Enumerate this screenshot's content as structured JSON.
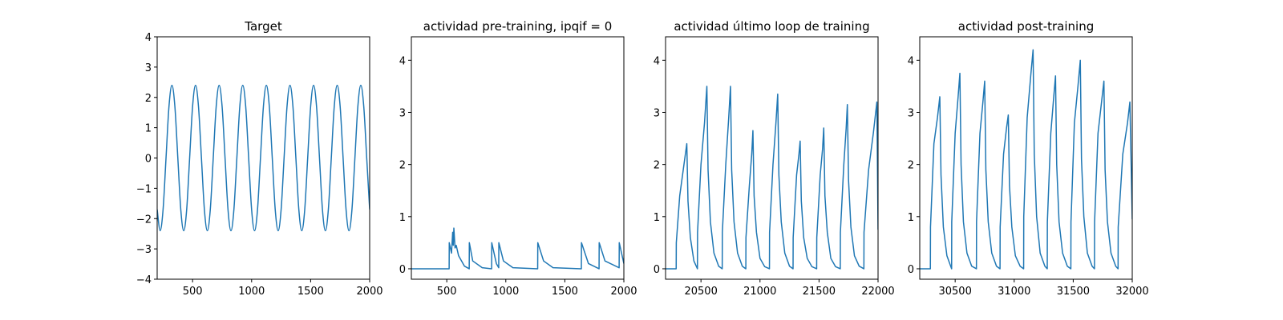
{
  "chart_data": [
    {
      "type": "line",
      "title": "Target",
      "color": "#1f77b4",
      "smooth": true,
      "x": [
        200,
        225,
        250,
        275,
        300,
        325,
        350,
        375,
        400,
        425,
        450,
        475,
        500,
        525,
        550,
        575,
        600,
        625,
        650,
        675,
        700,
        725,
        750,
        775,
        800,
        825,
        850,
        875,
        900,
        925,
        950,
        975,
        1000,
        1025,
        1050,
        1075,
        1100,
        1125,
        1150,
        1175,
        1200,
        1225,
        1250,
        1275,
        1300,
        1325,
        1350,
        1375,
        1400,
        1425,
        1450,
        1475,
        1500,
        1525,
        1550,
        1575,
        1600,
        1625,
        1650,
        1675,
        1700,
        1725,
        1750,
        1775,
        1800,
        1825,
        1850,
        1875,
        1900,
        1925,
        1950,
        1975,
        2000
      ],
      "values": [
        -1.7,
        -2.4,
        -1.7,
        0,
        1.7,
        2.4,
        1.7,
        0,
        -1.7,
        -2.4,
        -1.7,
        0,
        1.7,
        2.4,
        1.7,
        0,
        -1.7,
        -2.4,
        -1.7,
        0,
        1.7,
        2.4,
        1.7,
        0,
        -1.7,
        -2.4,
        -1.7,
        0,
        1.7,
        2.4,
        1.7,
        0,
        -1.7,
        -2.4,
        -1.7,
        0,
        1.7,
        2.4,
        1.7,
        0,
        -1.7,
        -2.4,
        -1.7,
        0,
        1.7,
        2.4,
        1.7,
        0,
        -1.7,
        -2.4,
        -1.7,
        0,
        1.7,
        2.4,
        1.7,
        0,
        -1.7,
        -2.4,
        -1.7,
        0,
        1.7,
        2.4,
        1.7,
        0,
        -1.7,
        -2.4,
        -1.7,
        0,
        1.7,
        2.4,
        1.7,
        0,
        -1.7
      ],
      "xlim": [
        200,
        2000
      ],
      "xticks": [
        500,
        1000,
        1500,
        2000
      ],
      "ylim": [
        -4,
        4
      ],
      "yticks": [
        {
          "value": -4,
          "label": "−4"
        },
        {
          "value": -3,
          "label": "−3"
        },
        {
          "value": -2,
          "label": "−2"
        },
        {
          "value": -1,
          "label": "−1"
        },
        0,
        1,
        2,
        3,
        4
      ]
    },
    {
      "type": "line",
      "title": "actividad pre-training, ipqif = 0",
      "color": "#1f77b4",
      "x": [
        200,
        520,
        521,
        540,
        550,
        555,
        560,
        570,
        580,
        600,
        650,
        690,
        691,
        720,
        800,
        880,
        881,
        920,
        940,
        941,
        980,
        1060,
        1270,
        1271,
        1320,
        1400,
        1640,
        1641,
        1700,
        1790,
        1791,
        1840,
        1960,
        1961,
        2000
      ],
      "values": [
        0,
        0,
        0.5,
        0.3,
        0.7,
        0.45,
        0.78,
        0.4,
        0.45,
        0.25,
        0.05,
        0,
        0.5,
        0.15,
        0.02,
        0,
        0.5,
        0.1,
        0.02,
        0.5,
        0.15,
        0.02,
        0,
        0.5,
        0.15,
        0.02,
        0,
        0.5,
        0.1,
        0,
        0.5,
        0.15,
        0.02,
        0.5,
        0.1
      ],
      "xlim": [
        200,
        2000
      ],
      "xticks": [
        500,
        1000,
        1500,
        2000
      ],
      "ylim": [
        -0.2,
        4.45
      ],
      "yticks": [
        0,
        1,
        2,
        3,
        4
      ]
    },
    {
      "type": "line",
      "title": "actividad último loop de training",
      "color": "#1f77b4",
      "x": [
        20200,
        20290,
        20291,
        20320,
        20350,
        20380,
        20390,
        20410,
        20440,
        20470,
        20471,
        20500,
        20530,
        20550,
        20560,
        20580,
        20610,
        20650,
        20680,
        20681,
        20710,
        20735,
        20750,
        20760,
        20780,
        20810,
        20850,
        20880,
        20881,
        20910,
        20930,
        20940,
        20950,
        20970,
        21000,
        21040,
        21080,
        21081,
        21110,
        21135,
        21150,
        21160,
        21180,
        21210,
        21250,
        21280,
        21281,
        21310,
        21330,
        21340,
        21350,
        21370,
        21400,
        21440,
        21480,
        21481,
        21510,
        21530,
        21540,
        21550,
        21570,
        21600,
        21640,
        21680,
        21681,
        21710,
        21730,
        21740,
        21750,
        21770,
        21800,
        21840,
        21880,
        21881,
        21920,
        21960,
        21990,
        22000
      ],
      "values": [
        0,
        0,
        0.5,
        1.4,
        1.9,
        2.4,
        1.3,
        0.6,
        0.15,
        0,
        0.7,
        2.0,
        2.8,
        3.5,
        1.9,
        0.9,
        0.3,
        0.05,
        0,
        0.7,
        2.0,
        2.9,
        3.5,
        1.9,
        0.9,
        0.3,
        0.05,
        0,
        0.6,
        1.6,
        2.2,
        2.65,
        1.4,
        0.7,
        0.2,
        0.04,
        0,
        0.7,
        2.0,
        2.8,
        3.35,
        1.8,
        0.9,
        0.3,
        0.05,
        0,
        0.6,
        1.8,
        2.2,
        2.45,
        1.3,
        0.6,
        0.2,
        0.04,
        0,
        0.6,
        1.8,
        2.3,
        2.7,
        1.4,
        0.7,
        0.2,
        0.04,
        0,
        0.7,
        2.0,
        2.7,
        3.15,
        1.7,
        0.8,
        0.25,
        0.05,
        0,
        0.7,
        1.9,
        2.6,
        3.2,
        0.75
      ],
      "xlim": [
        20200,
        22000
      ],
      "xticks": [
        20500,
        21000,
        21500,
        22000
      ],
      "ylim": [
        -0.2,
        4.45
      ],
      "yticks": [
        0,
        1,
        2,
        3,
        4
      ]
    },
    {
      "type": "line",
      "title": "actividad post-training",
      "color": "#1f77b4",
      "x": [
        30200,
        30290,
        30291,
        30320,
        30350,
        30370,
        30380,
        30400,
        30430,
        30470,
        30471,
        30500,
        30525,
        30540,
        30550,
        30570,
        30600,
        30640,
        30680,
        30681,
        30710,
        30735,
        30750,
        30760,
        30780,
        30810,
        30850,
        30880,
        30881,
        30910,
        30935,
        30950,
        30960,
        30980,
        31010,
        31050,
        31080,
        31081,
        31110,
        31140,
        31160,
        31170,
        31190,
        31220,
        31260,
        31280,
        31281,
        31310,
        31335,
        31350,
        31360,
        31380,
        31410,
        31450,
        31480,
        31481,
        31510,
        31540,
        31560,
        31570,
        31590,
        31620,
        31660,
        31680,
        31681,
        31710,
        31740,
        31760,
        31770,
        31790,
        31820,
        31860,
        31880,
        31881,
        31920,
        31960,
        31980,
        32000
      ],
      "values": [
        0,
        0,
        0.8,
        2.4,
        2.9,
        3.3,
        1.8,
        0.8,
        0.25,
        0,
        0.9,
        2.6,
        3.3,
        3.75,
        2.0,
        0.9,
        0.3,
        0.05,
        0,
        0.9,
        2.6,
        3.2,
        3.6,
        1.9,
        0.9,
        0.3,
        0.05,
        0,
        0.8,
        2.2,
        2.7,
        2.95,
        1.6,
        0.8,
        0.25,
        0.05,
        0,
        1.0,
        2.9,
        3.7,
        4.2,
        2.2,
        1.0,
        0.3,
        0.05,
        0,
        0.9,
        2.6,
        3.3,
        3.7,
        2.0,
        0.9,
        0.3,
        0.05,
        0,
        0.9,
        2.8,
        3.5,
        4.0,
        2.1,
        1.0,
        0.3,
        0.05,
        0,
        0.9,
        2.6,
        3.2,
        3.6,
        1.9,
        0.9,
        0.3,
        0.05,
        0,
        0.8,
        2.2,
        2.8,
        3.2,
        0.95
      ],
      "xlim": [
        30200,
        32000
      ],
      "xticks": [
        30500,
        31000,
        31500,
        32000
      ],
      "ylim": [
        -0.2,
        4.45
      ],
      "yticks": [
        0,
        1,
        2,
        3,
        4
      ]
    }
  ]
}
